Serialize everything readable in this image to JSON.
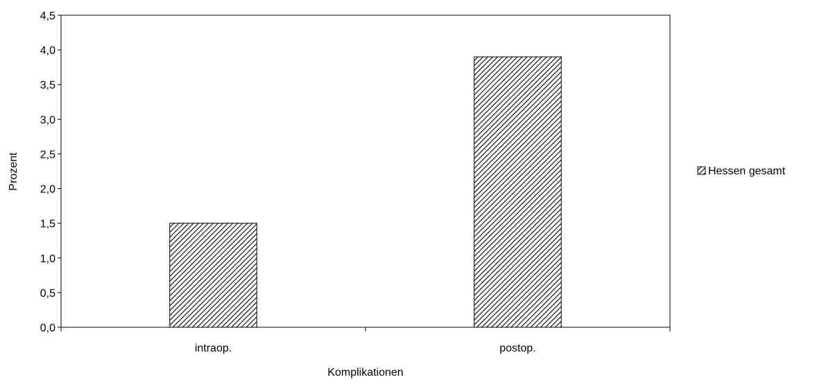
{
  "chart_data": {
    "type": "bar",
    "categories": [
      "intraop.",
      "postop."
    ],
    "series": [
      {
        "name": "Hessen gesamt",
        "values": [
          1.5,
          3.9
        ]
      }
    ],
    "xlabel": "Komplikationen",
    "ylabel": "Prozent",
    "ylim": [
      0,
      4.5
    ],
    "yticks": [
      "0,0",
      "0,5",
      "1,0",
      "1,5",
      "2,0",
      "2,5",
      "3,0",
      "3,5",
      "4,0",
      "4,5"
    ],
    "grid": false,
    "legend_position": "right",
    "bar_pattern": "diagonal-hatch",
    "colors": {
      "bar_fill": "#ffffff",
      "hatch": "#000000",
      "axis": "#000000"
    }
  }
}
